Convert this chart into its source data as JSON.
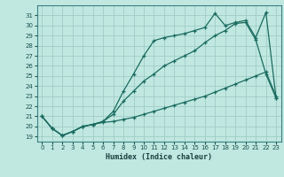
{
  "xlabel": "Humidex (Indice chaleur)",
  "background_color": "#c0e8e0",
  "grid_color": "#a0ccc8",
  "line_color": "#1a6b60",
  "xlim": [
    -0.5,
    23.5
  ],
  "ylim": [
    18.5,
    32.0
  ],
  "yticks": [
    19,
    20,
    21,
    22,
    23,
    24,
    25,
    26,
    27,
    28,
    29,
    30,
    31
  ],
  "xticks": [
    0,
    1,
    2,
    3,
    4,
    5,
    6,
    7,
    8,
    9,
    10,
    11,
    12,
    13,
    14,
    15,
    16,
    17,
    18,
    19,
    20,
    21,
    22,
    23
  ],
  "line_bottom_x": [
    0,
    1,
    2,
    3,
    4,
    5,
    6,
    7,
    8,
    9,
    10,
    11,
    12,
    13,
    14,
    15,
    16,
    17,
    18,
    19,
    20,
    21,
    22,
    23
  ],
  "line_bottom_y": [
    21.0,
    19.8,
    19.1,
    19.5,
    20.0,
    20.2,
    20.4,
    20.5,
    20.7,
    20.9,
    21.2,
    21.5,
    21.8,
    22.1,
    22.4,
    22.7,
    23.0,
    23.4,
    23.8,
    24.2,
    24.6,
    25.0,
    25.4,
    23.0
  ],
  "line_mid_x": [
    0,
    1,
    2,
    3,
    4,
    5,
    6,
    7,
    8,
    9,
    10,
    11,
    12,
    13,
    14,
    15,
    16,
    17,
    18,
    19,
    20,
    21,
    22,
    23
  ],
  "line_mid_y": [
    21.0,
    19.8,
    19.1,
    19.5,
    20.0,
    20.2,
    20.5,
    21.2,
    22.5,
    23.5,
    24.5,
    25.2,
    26.0,
    26.5,
    27.0,
    27.5,
    28.3,
    29.0,
    29.5,
    30.2,
    30.3,
    28.6,
    25.2,
    22.8
  ],
  "line_top_x": [
    0,
    1,
    2,
    3,
    4,
    5,
    6,
    7,
    8,
    9,
    10,
    11,
    12,
    13,
    14,
    15,
    16,
    17,
    18,
    19,
    20,
    21,
    22,
    23
  ],
  "line_top_y": [
    21.0,
    19.8,
    19.1,
    19.5,
    20.0,
    20.2,
    20.5,
    21.5,
    23.5,
    25.2,
    27.0,
    28.5,
    28.8,
    29.0,
    29.2,
    29.5,
    29.8,
    31.2,
    30.0,
    30.3,
    30.5,
    28.8,
    31.3,
    22.8
  ]
}
